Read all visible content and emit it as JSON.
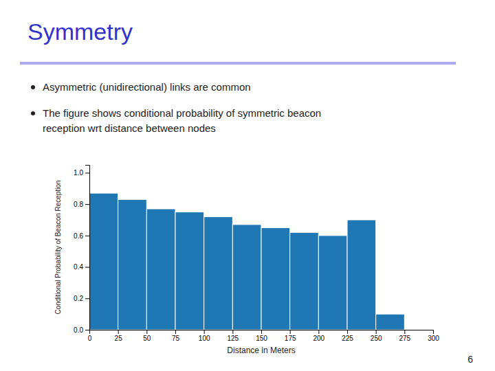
{
  "chart_data": {
    "type": "histogram",
    "title": "Symmetry",
    "annotations": [
      "Asymmetric (unidirectional) links are common",
      "The figure shows conditional probability of symmetric beacon",
      "reception wrt distance between nodes",
      "6"
    ],
    "bins": [
      0,
      25,
      50,
      75,
      100,
      125,
      150,
      175,
      200,
      225,
      250,
      275
    ],
    "values": [
      0.87,
      0.83,
      0.77,
      0.75,
      0.72,
      0.67,
      0.65,
      0.62,
      0.6,
      0.7,
      0.1
    ],
    "xlabel": "Distance in Meters",
    "ylabel": "Conditional Probability of Beacon Reception",
    "xlim": [
      0,
      300
    ],
    "ylim": [
      0,
      1.05
    ],
    "xticks": [
      0,
      25,
      50,
      75,
      100,
      125,
      150,
      175,
      200,
      225,
      250,
      275,
      300
    ],
    "yticks": [
      {
        "value": 0,
        "label": "0.0"
      },
      0.2,
      0.4,
      0.6,
      0.8,
      {
        "value": 1,
        "label": "1.0"
      }
    ],
    "grid": false
  }
}
